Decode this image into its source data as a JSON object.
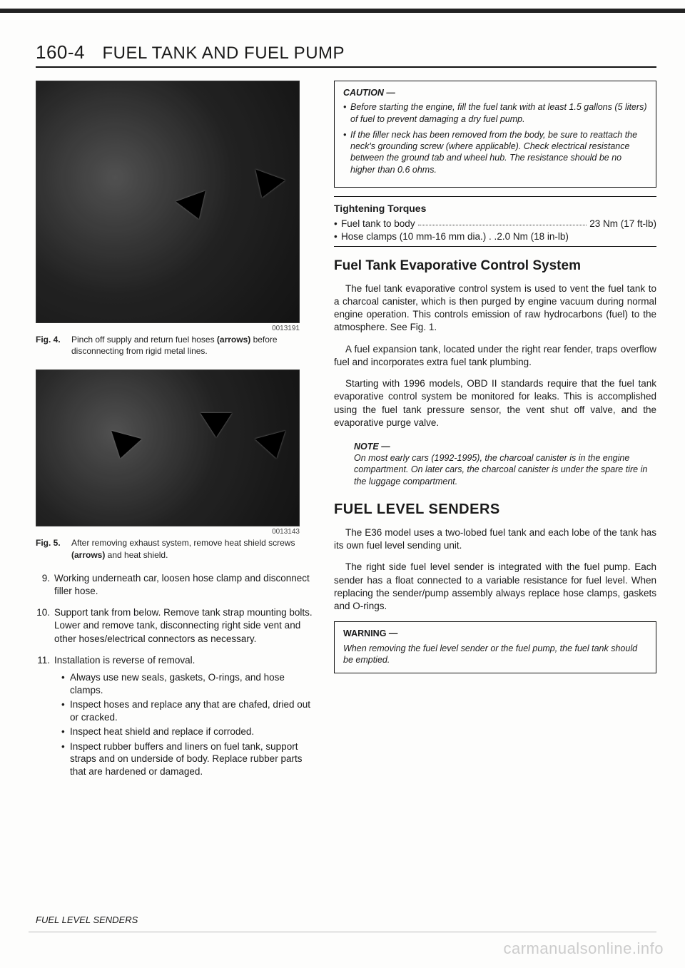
{
  "page": {
    "number": "160-4",
    "title": "FUEL TANK AND FUEL PUMP",
    "footer_section": "FUEL LEVEL SENDERS",
    "watermark": "carmanualsonline.info"
  },
  "fig4": {
    "id": "0013191",
    "label": "Fig. 4.",
    "caption_pre": "Pinch off supply and return fuel hoses ",
    "caption_bold": "(arrows)",
    "caption_post": " before disconnecting from rigid metal lines."
  },
  "fig5": {
    "id": "0013143",
    "label": "Fig. 5.",
    "caption_pre": "After removing exhaust system, remove heat shield screws ",
    "caption_bold": "(arrows)",
    "caption_post": " and heat shield."
  },
  "steps": {
    "s9": {
      "n": "9.",
      "t": "Working underneath car, loosen hose clamp and disconnect filler hose."
    },
    "s10": {
      "n": "10.",
      "t": "Support tank from below. Remove tank strap mounting bolts. Lower and remove tank, disconnecting right side vent and other hoses/electrical connectors as necessary."
    },
    "s11": {
      "n": "11.",
      "t": "Installation is reverse of removal.",
      "bullets": [
        "Always use new seals, gaskets, O-rings, and hose clamps.",
        "Inspect hoses and replace any that are chafed, dried out or cracked.",
        "Inspect heat shield and replace if corroded.",
        "Inspect rubber buffers and liners on fuel tank, support straps and on underside of body. Replace rubber parts that are hardened or damaged."
      ]
    }
  },
  "caution": {
    "title": "CAUTION —",
    "items": [
      "Before starting the engine, fill the fuel tank with at least 1.5 gallons (5 liters) of fuel to prevent damaging a dry fuel pump.",
      "If the filler neck has been removed from the body, be sure to reattach the neck's grounding screw (where applicable). Check electrical resistance between the ground tab and wheel hub. The resistance should be no higher than 0.6 ohms."
    ]
  },
  "torques": {
    "title": "Tightening Torques",
    "rows": [
      {
        "label": "Fuel tank to body",
        "val": "23 Nm (17 ft-lb)"
      },
      {
        "label": "Hose clamps (10 mm-16 mm dia.) . .",
        "val": "2.0 Nm (18 in-lb)"
      }
    ]
  },
  "evap": {
    "heading": "Fuel Tank Evaporative Control System",
    "p1": "The fuel tank evaporative control system is used to vent the fuel tank to a charcoal canister, which is then purged by engine vacuum during normal engine operation. This controls emission of raw hydrocarbons (fuel) to the atmosphere. See Fig. 1.",
    "p2": "A fuel expansion tank, located under the right rear fender, traps overflow fuel and incorporates extra fuel tank plumbing.",
    "p3": "Starting with 1996 models, OBD II standards require that the fuel tank evaporative control system be monitored for leaks. This is accomplished using the fuel tank pressure sensor, the vent shut off valve, and the evaporative purge valve."
  },
  "note": {
    "title": "NOTE —",
    "body": "On most early cars (1992-1995), the charcoal canister is in the engine compartment. On later cars, the charcoal canister is under the spare tire in the luggage compartment."
  },
  "senders": {
    "heading": "FUEL LEVEL SENDERS",
    "p1": "The E36 model uses a two-lobed fuel tank and each lobe of the tank has its own fuel level sending unit.",
    "p2": "The right side fuel level sender is integrated with the fuel pump. Each sender has a float connected to a variable resistance for fuel level. When replacing the sender/pump assembly always replace hose clamps, gaskets and O-rings."
  },
  "warning": {
    "title": "WARNING —",
    "body": "When removing the fuel level sender or the fuel pump, the fuel tank should be emptied."
  }
}
